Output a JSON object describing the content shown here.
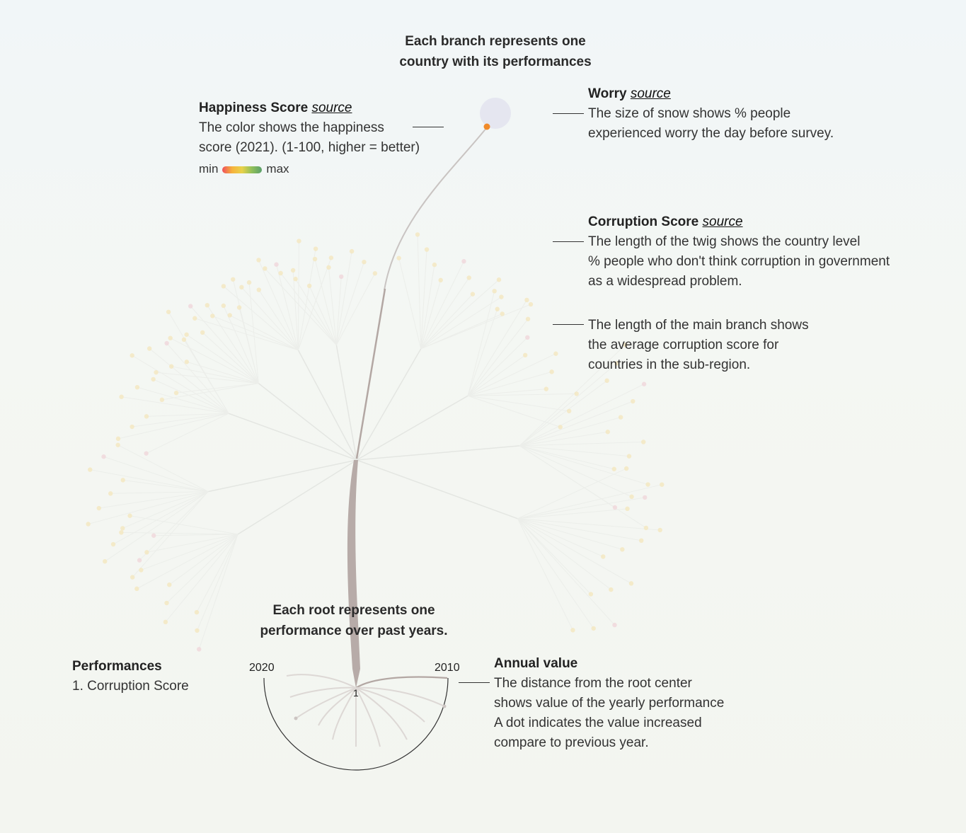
{
  "header": {
    "line1": "Each branch represents one",
    "line2": "country with its performances"
  },
  "happiness": {
    "title": "Happiness Score",
    "link": "source",
    "line1": "The color shows the happiness",
    "line2": "score (2021). (1-100, higher = better)",
    "legend_min": "min",
    "legend_max": "max",
    "gradient": [
      "#ef4f5c",
      "#f6b23c",
      "#e8d24a",
      "#8fbf5a",
      "#5aa06a"
    ]
  },
  "worry": {
    "title": "Worry",
    "link": "source",
    "line1": "The size of snow shows % people",
    "line2": "experienced worry the day before survey."
  },
  "corruption": {
    "title": "Corruption Score",
    "link": "source",
    "line1": "The length of the twig shows the country level",
    "line2": "% people who don't think corruption in government",
    "line3": "as a widespread problem."
  },
  "main_branch": {
    "line1": "The length of the main branch shows",
    "line2": "the average corruption score for",
    "line3": "countries in the sub-region."
  },
  "root_caption": {
    "line1": "Each root represents one",
    "line2": "performance over past years."
  },
  "performances": {
    "title": "Performances",
    "item1": "1. Corruption Score"
  },
  "annual": {
    "title": "Annual value",
    "line1": "The distance from the root center",
    "line2": "shows value of the yearly performance",
    "line3": "A dot indicates the value increased",
    "line4": "compare to previous year."
  },
  "root_axis": {
    "start_year": "2020",
    "end_year": "2010",
    "root_index": "1"
  },
  "colors": {
    "trunk": "#a89a96",
    "highlight_dot": "#f08a2a",
    "worry_snow": "#e3e4f0",
    "faint_branch": "#e6e8e4",
    "faint_dot": "#f2e6c4"
  }
}
